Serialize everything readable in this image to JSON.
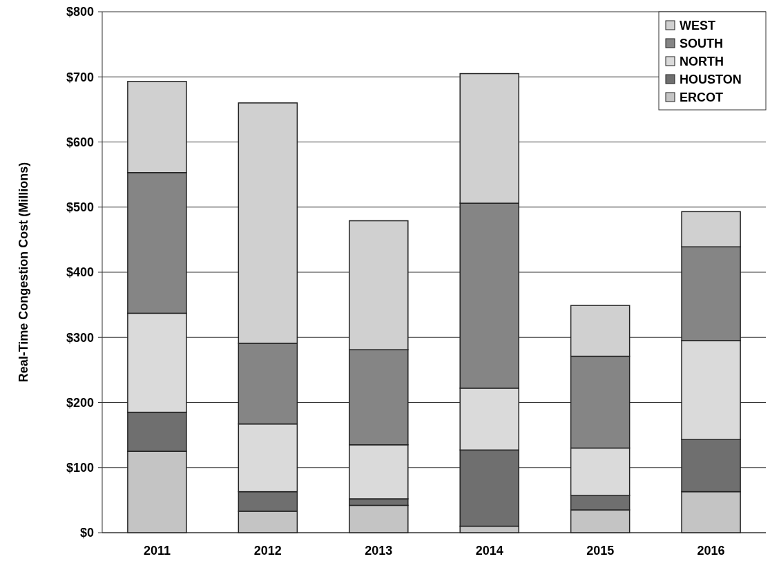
{
  "chart_data": {
    "type": "bar",
    "stacked": true,
    "ylabel": "Real-Time Congestion Cost (Millions)",
    "categories": [
      "2011",
      "2012",
      "2013",
      "2014",
      "2015",
      "2016"
    ],
    "series": [
      {
        "name": "ERCOT",
        "color": "#c4c4c4",
        "values": [
          125,
          33,
          42,
          10,
          35,
          63
        ]
      },
      {
        "name": "HOUSTON",
        "color": "#6f6f6f",
        "values": [
          60,
          30,
          10,
          117,
          22,
          80
        ]
      },
      {
        "name": "NORTH",
        "color": "#dadada",
        "values": [
          152,
          104,
          83,
          95,
          73,
          152
        ]
      },
      {
        "name": "SOUTH",
        "color": "#858585",
        "values": [
          216,
          124,
          146,
          284,
          141,
          144
        ]
      },
      {
        "name": "WEST",
        "color": "#d0d0d0",
        "values": [
          140,
          369,
          198,
          199,
          78,
          54
        ]
      }
    ],
    "ylim": [
      0,
      800
    ],
    "yticks": [
      {
        "value": 0,
        "label": "$0"
      },
      {
        "value": 100,
        "label": "$100"
      },
      {
        "value": 200,
        "label": "$200"
      },
      {
        "value": 300,
        "label": "$300"
      },
      {
        "value": 400,
        "label": "$400"
      },
      {
        "value": 500,
        "label": "$500"
      },
      {
        "value": 600,
        "label": "$600"
      },
      {
        "value": 700,
        "label": "$700"
      },
      {
        "value": 800,
        "label": "$800"
      }
    ],
    "grid": "y",
    "legend": "top right"
  }
}
